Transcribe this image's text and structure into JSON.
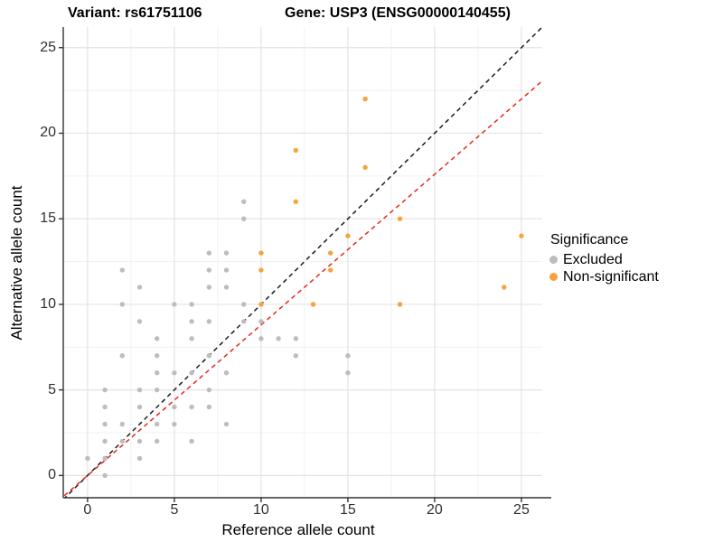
{
  "chart_data": {
    "type": "scatter",
    "title_left": "Variant: rs61751106",
    "title_right": "Gene: USP3 (ENSG00000140455)",
    "xlabel": "Reference allele count",
    "ylabel": "Alternative allele count",
    "xlim": [
      -1.4,
      26.2
    ],
    "ylim": [
      -1.3,
      26.2
    ],
    "xticks": [
      0,
      5,
      10,
      15,
      20,
      25
    ],
    "yticks": [
      0,
      5,
      10,
      15,
      20,
      25
    ],
    "minor_ticks": [
      2.5,
      7.5,
      12.5,
      17.5,
      22.5
    ],
    "grid": true,
    "colors": {
      "grid_major": "#e3e3e3",
      "grid_minor": "#f1f1f1",
      "axis": "#333333",
      "excluded": "#bdbdbd",
      "non_significant": "#f9a23b",
      "identity_line": "#1a1a1a",
      "ratio_line": "#e8251f"
    },
    "legend": {
      "title": "Significance",
      "position": "right",
      "entries": [
        {
          "label": "Excluded",
          "color": "#bdbdbd"
        },
        {
          "label": "Non-significant",
          "color": "#f9a23b"
        }
      ]
    },
    "series": [
      {
        "name": "Excluded",
        "color": "#bdbdbd",
        "points": [
          [
            0,
            1
          ],
          [
            1,
            0
          ],
          [
            1,
            1
          ],
          [
            1,
            2
          ],
          [
            1,
            3
          ],
          [
            1,
            4
          ],
          [
            1,
            5
          ],
          [
            2,
            2
          ],
          [
            2,
            3
          ],
          [
            2,
            7
          ],
          [
            2,
            10
          ],
          [
            2,
            12
          ],
          [
            3,
            1
          ],
          [
            3,
            2
          ],
          [
            3,
            4
          ],
          [
            3,
            5
          ],
          [
            3,
            9
          ],
          [
            3,
            11
          ],
          [
            4,
            2
          ],
          [
            4,
            3
          ],
          [
            4,
            5
          ],
          [
            4,
            6
          ],
          [
            4,
            7
          ],
          [
            4,
            8
          ],
          [
            5,
            3
          ],
          [
            5,
            4
          ],
          [
            5,
            6
          ],
          [
            5,
            10
          ],
          [
            6,
            2
          ],
          [
            6,
            4
          ],
          [
            6,
            6
          ],
          [
            6,
            8
          ],
          [
            6,
            9
          ],
          [
            6,
            10
          ],
          [
            7,
            4
          ],
          [
            7,
            5
          ],
          [
            7,
            7
          ],
          [
            7,
            9
          ],
          [
            7,
            11
          ],
          [
            7,
            12
          ],
          [
            7,
            13
          ],
          [
            8,
            3
          ],
          [
            8,
            6
          ],
          [
            8,
            11
          ],
          [
            8,
            12
          ],
          [
            8,
            13
          ],
          [
            9,
            9
          ],
          [
            9,
            10
          ],
          [
            9,
            15
          ],
          [
            9,
            16
          ],
          [
            10,
            8
          ],
          [
            10,
            9
          ],
          [
            11,
            8
          ],
          [
            12,
            7
          ],
          [
            12,
            8
          ],
          [
            15,
            6
          ],
          [
            15,
            7
          ]
        ]
      },
      {
        "name": "Non-significant",
        "color": "#f9a23b",
        "points": [
          [
            10,
            10
          ],
          [
            10,
            12
          ],
          [
            10,
            13
          ],
          [
            12,
            16
          ],
          [
            12,
            19
          ],
          [
            13,
            10
          ],
          [
            14,
            12
          ],
          [
            14,
            13
          ],
          [
            15,
            14
          ],
          [
            16,
            18
          ],
          [
            16,
            22
          ],
          [
            18,
            10
          ],
          [
            18,
            15
          ],
          [
            24,
            11
          ],
          [
            25,
            14
          ]
        ]
      }
    ],
    "lines": [
      {
        "name": "identity-line",
        "slope": 1.0,
        "intercept": 0,
        "color": "#1a1a1a",
        "dash": "5,4"
      },
      {
        "name": "ratio-line",
        "slope": 0.88,
        "intercept": 0,
        "color": "#e8251f",
        "dash": "5,4"
      }
    ]
  }
}
